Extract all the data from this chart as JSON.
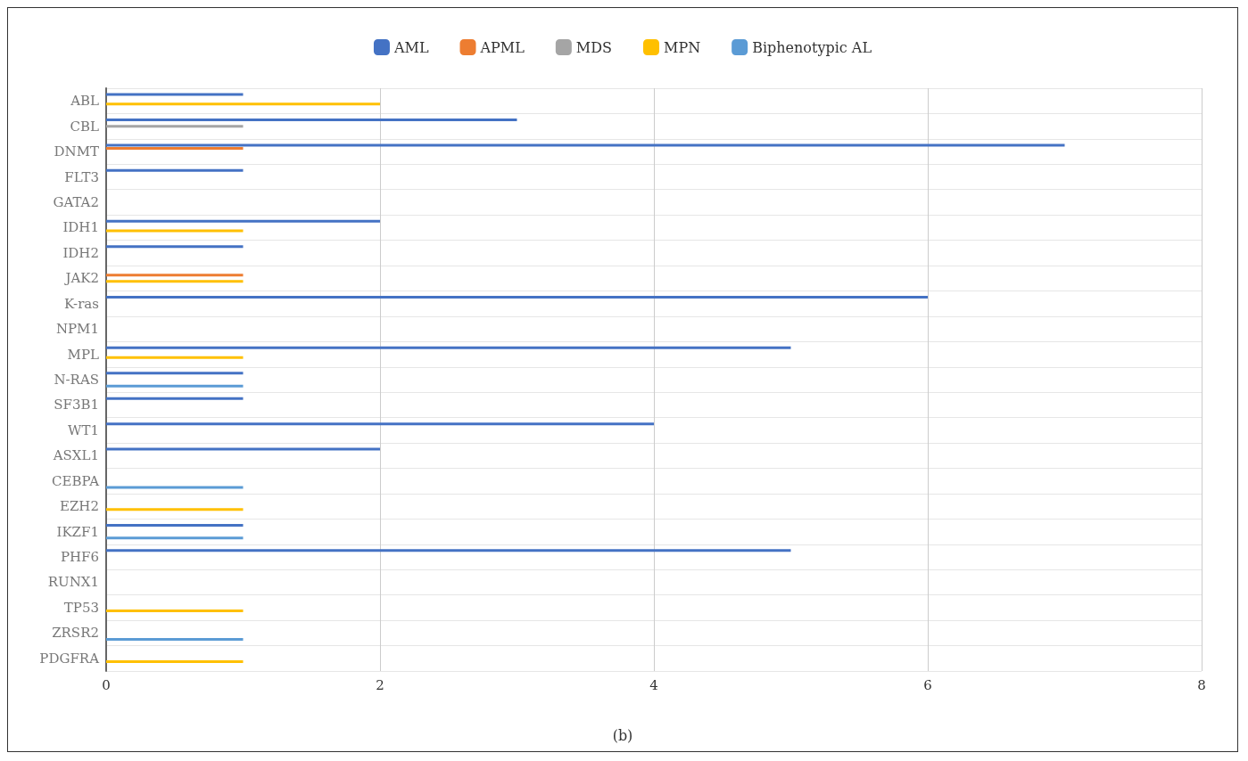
{
  "chart_data": {
    "type": "bar",
    "orientation": "horizontal",
    "categories": [
      "ABL",
      "CBL",
      "DNMT",
      "FLT3",
      "GATA2",
      "IDH1",
      "IDH2",
      "JAK2",
      "K-ras",
      "NPM1",
      "MPL",
      "N-RAS",
      "SF3B1",
      "WT1",
      "ASXL1",
      "CEBPA",
      "EZH2",
      "IKZF1",
      "PHF6",
      "RUNX1",
      "TP53",
      "ZRSR2",
      "PDGFRA"
    ],
    "series": [
      {
        "name": "AML",
        "color": "#4472c4",
        "values": [
          1,
          3,
          7,
          1,
          null,
          2,
          1,
          null,
          6,
          null,
          5,
          1,
          1,
          4,
          2,
          null,
          null,
          1,
          5,
          null,
          null,
          null,
          null
        ]
      },
      {
        "name": "APML",
        "color": "#ed7d31",
        "values": [
          null,
          null,
          1,
          null,
          null,
          null,
          null,
          1,
          null,
          null,
          null,
          null,
          null,
          null,
          null,
          null,
          null,
          null,
          null,
          null,
          null,
          null,
          null
        ]
      },
      {
        "name": "MDS",
        "color": "#a5a5a5",
        "values": [
          null,
          1,
          null,
          null,
          null,
          null,
          null,
          null,
          null,
          null,
          null,
          null,
          null,
          null,
          null,
          null,
          null,
          null,
          null,
          null,
          null,
          null,
          null
        ]
      },
      {
        "name": "MPN",
        "color": "#ffc000",
        "values": [
          2,
          null,
          null,
          null,
          null,
          1,
          null,
          1,
          null,
          null,
          1,
          null,
          null,
          null,
          null,
          null,
          1,
          null,
          null,
          null,
          1,
          null,
          1
        ]
      },
      {
        "name": "Biphenotypic AL",
        "color": "#5b9bd5",
        "values": [
          null,
          null,
          null,
          null,
          null,
          null,
          null,
          null,
          null,
          null,
          null,
          1,
          null,
          null,
          null,
          1,
          null,
          1,
          null,
          null,
          null,
          1,
          null
        ]
      }
    ],
    "xlim": [
      0,
      8
    ],
    "xticks": [
      0,
      2,
      4,
      6,
      8
    ],
    "grid": true,
    "legend": "top",
    "annotations": [
      "(b)"
    ]
  }
}
